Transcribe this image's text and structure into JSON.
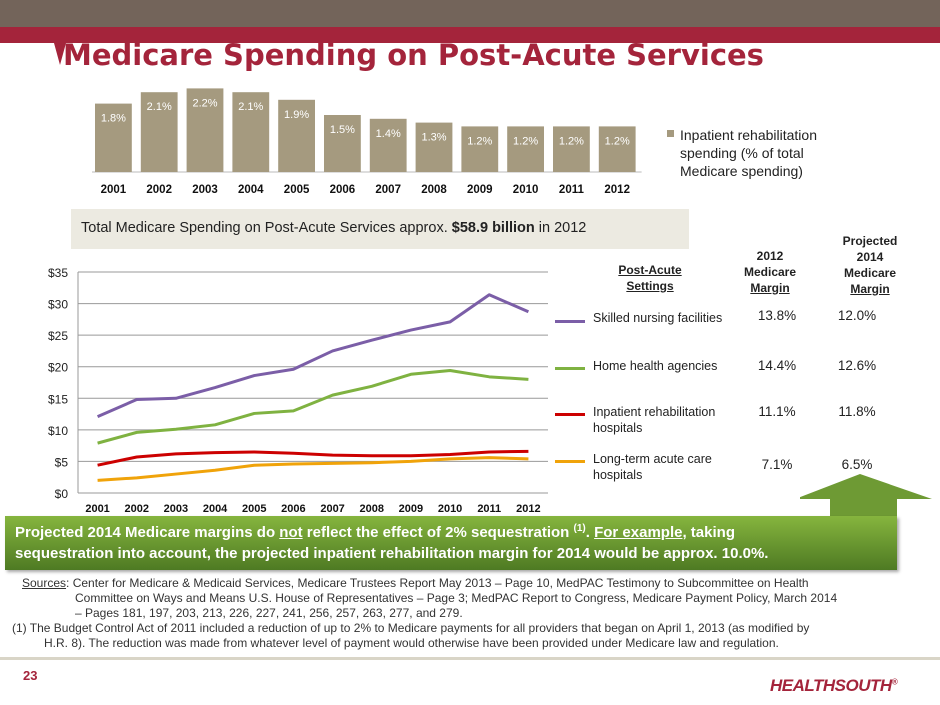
{
  "title": "Medicare Spending on Post-Acute Services",
  "total_box": {
    "prefix": "Total Medicare Spending on Post-Acute Services approx. ",
    "bold": "$58.9 billion",
    "suffix": " in 2012"
  },
  "colors": {
    "brand_red": "#a4243b",
    "bar": "#a59a7f",
    "snf": "#7b5ea7",
    "hha": "#7fb241",
    "irh": "#cc0000",
    "ltach": "#f0a30a",
    "banner_green": "#6a9a30"
  },
  "chart_data": [
    {
      "type": "bar",
      "categories": [
        "2001",
        "2002",
        "2003",
        "2004",
        "2005",
        "2006",
        "2007",
        "2008",
        "2009",
        "2010",
        "2011",
        "2012"
      ],
      "values": [
        1.8,
        2.1,
        2.2,
        2.1,
        1.9,
        1.5,
        1.4,
        1.3,
        1.2,
        1.2,
        1.2,
        1.2
      ],
      "data_labels": [
        "1.8%",
        "2.1%",
        "2.2%",
        "2.1%",
        "1.9%",
        "1.5%",
        "1.4%",
        "1.3%",
        "1.2%",
        "1.2%",
        "1.2%",
        "1.2%"
      ],
      "legend": [
        "Inpatient rehabilitation",
        "spending (% of total",
        "Medicare spending)"
      ],
      "legend_placement": "right",
      "series_name": "Inpatient rehabilitation spending (% of total Medicare spending)"
    },
    {
      "type": "line",
      "x": [
        "2001",
        "2002",
        "2003",
        "2004",
        "2005",
        "2006",
        "2007",
        "2008",
        "2009",
        "2010",
        "2011",
        "2012"
      ],
      "ylim": [
        0,
        35
      ],
      "yticks": [
        "$0",
        "$5",
        "$10",
        "$15",
        "$20",
        "$25",
        "$30",
        "$35"
      ],
      "grid": true,
      "series": [
        {
          "name": "Skilled nursing facilities",
          "color": "#7b5ea7",
          "values": [
            12.1,
            14.8,
            15.0,
            16.7,
            18.6,
            19.6,
            22.5,
            24.2,
            25.8,
            27.1,
            31.4,
            28.7
          ]
        },
        {
          "name": "Home health agencies",
          "color": "#7fb241",
          "values": [
            7.9,
            9.6,
            10.1,
            10.8,
            12.6,
            13.0,
            15.5,
            16.9,
            18.8,
            19.4,
            18.4,
            18.0
          ]
        },
        {
          "name": "Inpatient rehabilitation hospitals",
          "color": "#cc0000",
          "values": [
            4.4,
            5.7,
            6.2,
            6.4,
            6.5,
            6.3,
            6.0,
            5.9,
            5.9,
            6.1,
            6.5,
            6.6
          ]
        },
        {
          "name": "Long-term acute care hospitals",
          "color": "#f0a30a",
          "values": [
            2.0,
            2.4,
            3.0,
            3.6,
            4.4,
            4.6,
            4.7,
            4.8,
            5.0,
            5.4,
            5.6,
            5.4
          ]
        }
      ]
    }
  ],
  "table": {
    "headers": {
      "settings": [
        "Post-Acute",
        "Settings"
      ],
      "margin2012": [
        "2012",
        "Medicare",
        "Margin"
      ],
      "margin2014": [
        "Projected",
        "2014",
        "Medicare",
        "Margin"
      ]
    },
    "rows": [
      {
        "setting": [
          "Skilled nursing facilities"
        ],
        "m2012": "13.8%",
        "m2014": "12.0%"
      },
      {
        "setting": [
          "Home health agencies"
        ],
        "m2012": "14.4%",
        "m2014": "12.6%"
      },
      {
        "setting": [
          "Inpatient rehabilitation",
          "hospitals"
        ],
        "m2012": "11.1%",
        "m2014": "11.8%"
      },
      {
        "setting": [
          "Long-term acute care",
          "hospitals"
        ],
        "m2012": "7.1%",
        "m2014": "6.5%"
      }
    ]
  },
  "banner": {
    "l1a": "Projected 2014 Medicare margins do ",
    "l1b": "not",
    "l1c": " reflect the effect of  2% sequestration ",
    "l1sup": "(1)",
    "l1d": ". ",
    "l1e": "For example",
    "l1f": ", taking",
    "l2": "sequestration into account, the projected inpatient rehabilitation margin for 2014 would be approx. 10.0%."
  },
  "sources": {
    "label": "Sources",
    "l1": ": Center for Medicare & Medicaid Services, Medicare Trustees Report May 2013 – Page 10, MedPAC Testimony to Subcommittee on Health",
    "l2": "Committee on Ways and Means U.S. House of Representatives – Page 3; MedPAC Report to Congress, Medicare Payment Policy, March 2014",
    "l3": "– Pages 181, 197, 203, 213, 226, 227, 241, 256, 257, 263, 277, and 279.",
    "n1": "(1) The Budget Control Act of 2011 included a reduction of up to 2% to Medicare payments for all providers that began on April 1, 2013 (as modified by",
    "n2": "H.R. 8). The reduction was made from whatever level of payment would otherwise have been provided under Medicare law and regulation."
  },
  "page_number": "23",
  "logo": "HEALTHSOUTH"
}
